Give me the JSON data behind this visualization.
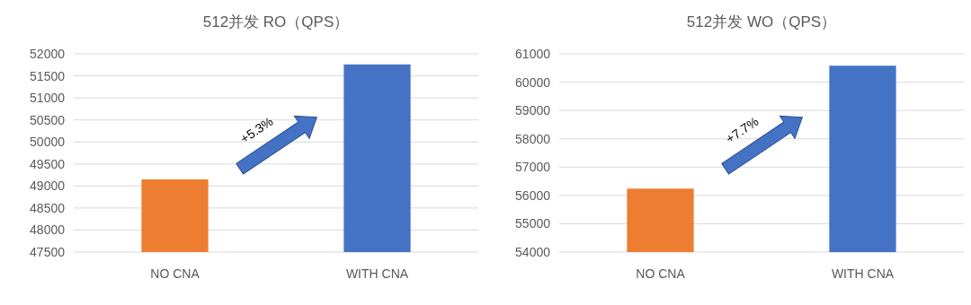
{
  "chart_data": [
    {
      "type": "bar",
      "title": "512并发 RO（QPS）",
      "categories": [
        "NO CNA",
        "WITH CNA"
      ],
      "values": [
        49150,
        51760
      ],
      "colors": [
        "#ed7d31",
        "#4472c4"
      ],
      "ylim": [
        47500,
        52000
      ],
      "yticks": [
        47500,
        48000,
        48500,
        49000,
        49500,
        50000,
        50500,
        51000,
        51500,
        52000
      ],
      "grid": "y",
      "annotations": [
        "+5.3%"
      ]
    },
    {
      "type": "bar",
      "title": "512并发 WO（QPS）",
      "categories": [
        "NO CNA",
        "WITH CNA"
      ],
      "values": [
        56240,
        60580
      ],
      "colors": [
        "#ed7d31",
        "#4472c4"
      ],
      "ylim": [
        54000,
        61000
      ],
      "yticks": [
        54000,
        55000,
        56000,
        57000,
        58000,
        59000,
        60000,
        61000
      ],
      "grid": "y",
      "annotations": [
        "+7.7%"
      ]
    }
  ]
}
